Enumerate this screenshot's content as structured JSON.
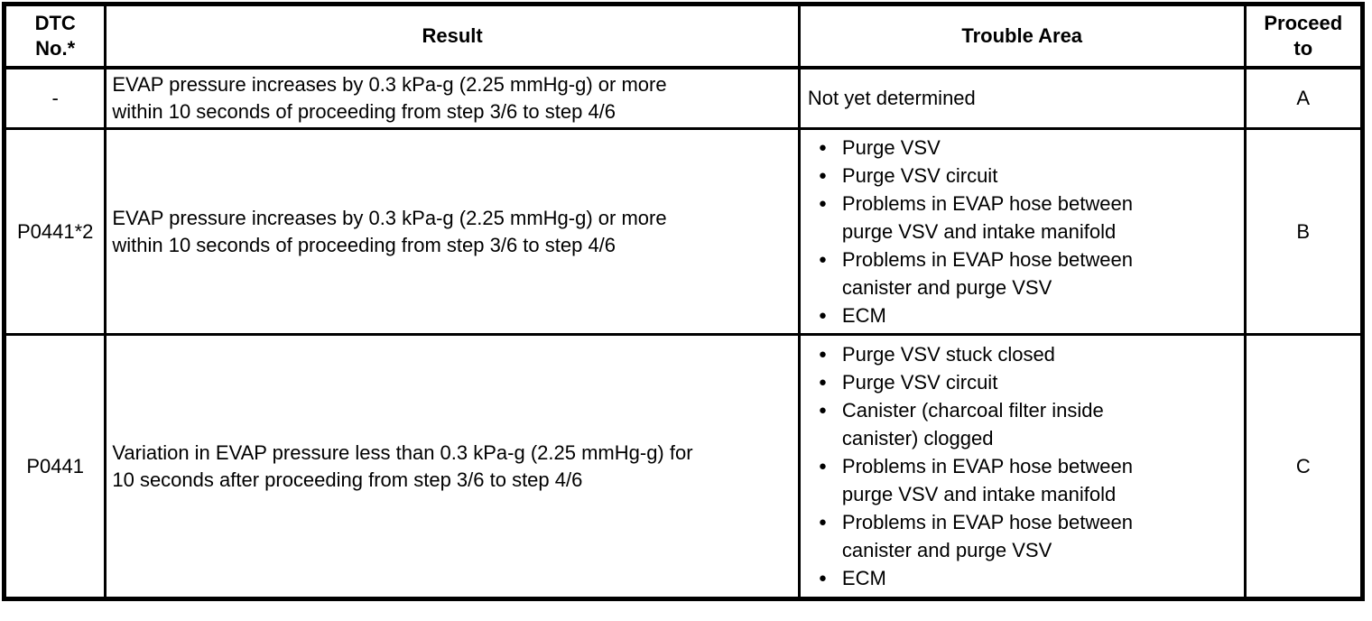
{
  "table": {
    "header": {
      "dtc_no": "DTC\nNo.*",
      "result": "Result",
      "trouble_area": "Trouble Area",
      "proceed_to": "Proceed\nto"
    },
    "rows": [
      {
        "dtc_no": "-",
        "result": "EVAP pressure increases by 0.3 kPa-g (2.25 mmHg-g) or more\nwithin 10 seconds of proceeding from step 3/6 to step 4/6",
        "trouble_area_text": "Not yet determined",
        "proceed_to": "A"
      },
      {
        "dtc_no": "P0441*2",
        "result": "EVAP pressure increases by 0.3 kPa-g (2.25 mmHg-g) or more\nwithin 10 seconds of proceeding from step 3/6 to step 4/6",
        "trouble_area_bullets": [
          "Purge VSV",
          "Purge VSV circuit",
          "Problems in EVAP hose between\npurge VSV and intake manifold",
          "Problems in EVAP hose between\ncanister and purge VSV",
          "ECM"
        ],
        "proceed_to": "B"
      },
      {
        "dtc_no": "P0441",
        "result": "Variation in EVAP pressure less than 0.3 kPa-g (2.25 mmHg-g) for\n10 seconds after proceeding from step 3/6 to step 4/6",
        "trouble_area_bullets": [
          "Purge VSV stuck closed",
          "Purge VSV circuit",
          "Canister (charcoal filter inside\ncanister) clogged",
          "Problems in EVAP hose between\npurge VSV and intake manifold",
          "Problems in EVAP hose between\ncanister and purge VSV",
          "ECM"
        ],
        "proceed_to": "C"
      }
    ]
  },
  "colors": {
    "border": "#000000",
    "text": "#000000",
    "background": "#ffffff"
  },
  "icons": {
    "bullet": "●"
  }
}
